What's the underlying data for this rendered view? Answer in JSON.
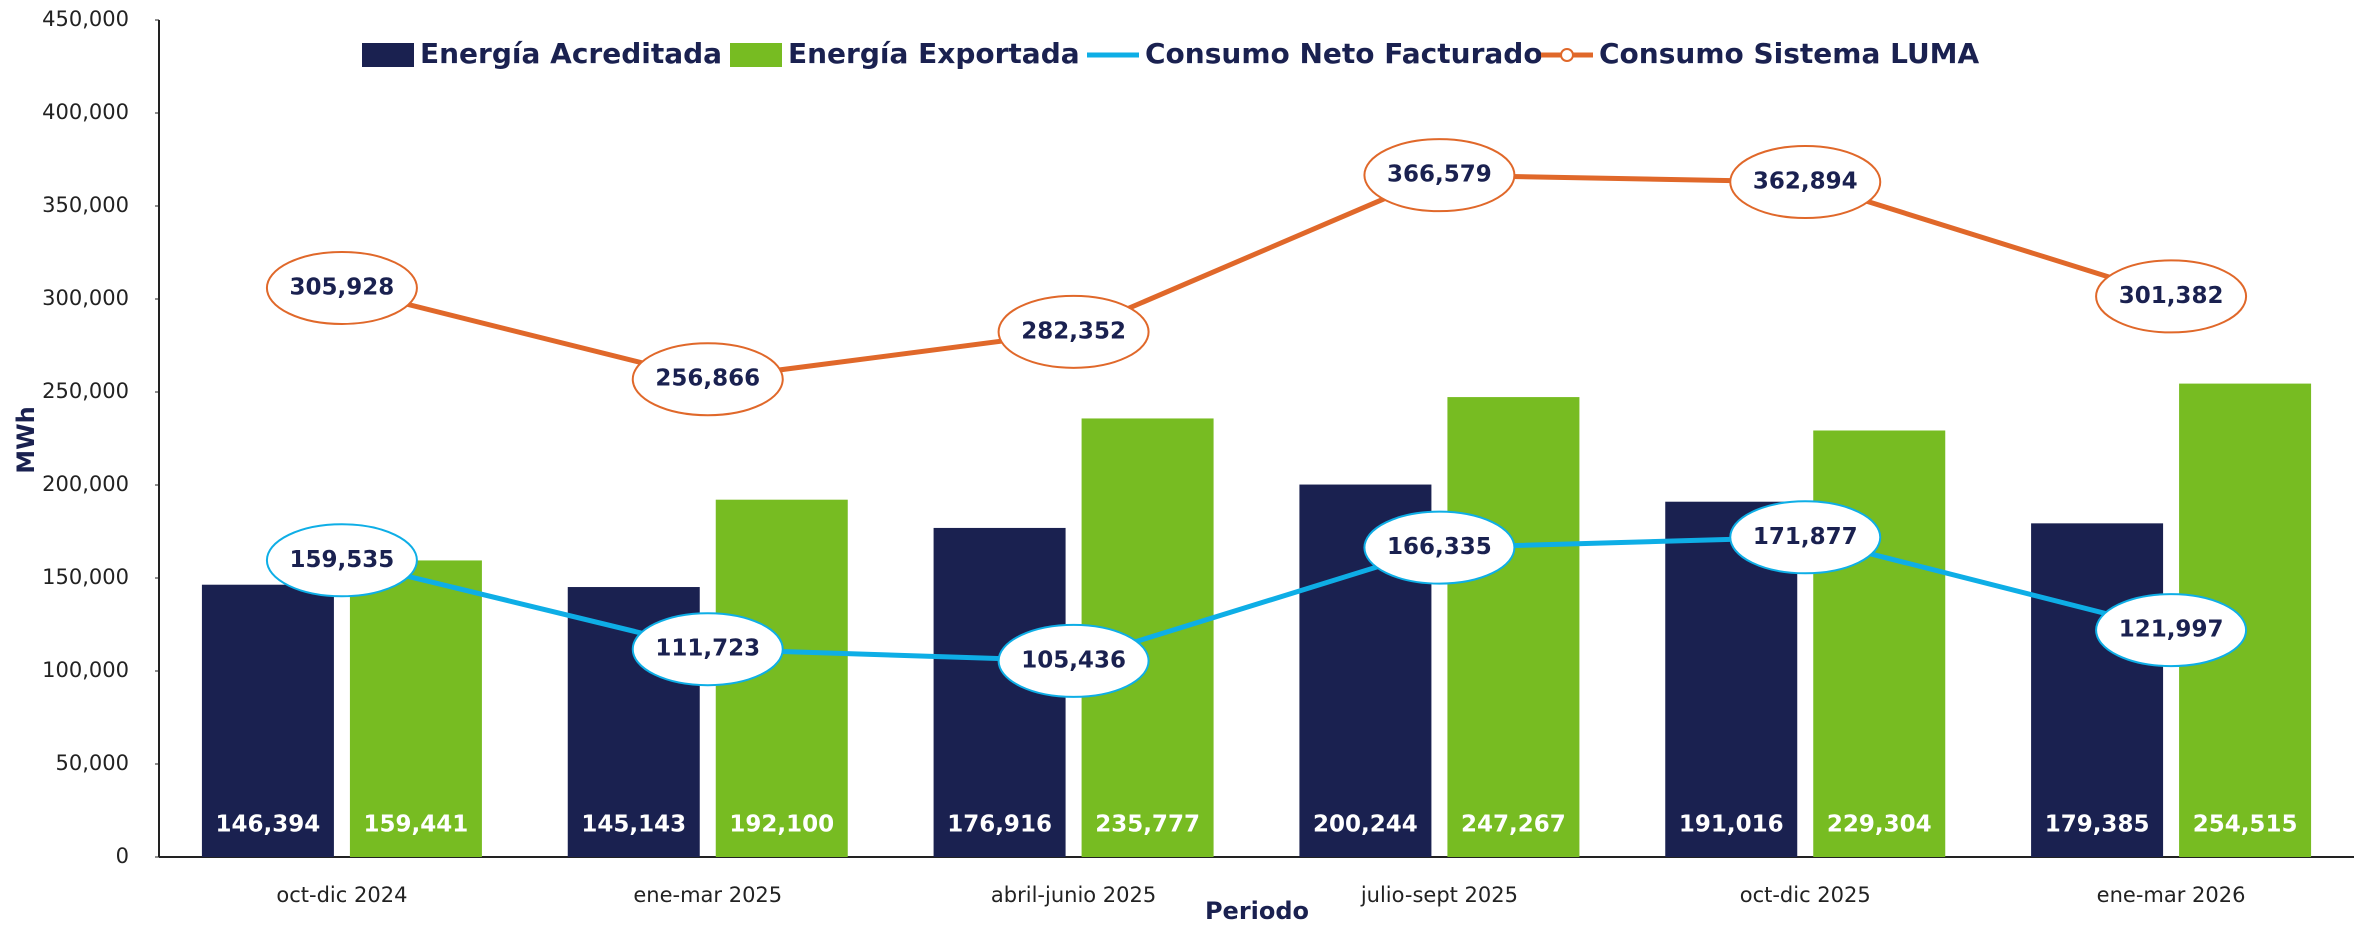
{
  "chart_data": {
    "type": "bar",
    "x_label": "Periodo",
    "y_label": "MWh",
    "categories": [
      "oct-dic 2024",
      "ene-mar 2025",
      "abril-junio 2025",
      "julio-sept 2025",
      "oct-dic 2025",
      "ene-mar 2026"
    ],
    "series": [
      {
        "name": "Energía Acreditada",
        "type": "bar",
        "color": "#1a2150",
        "values": [
          146394,
          145143,
          176916,
          200244,
          191016,
          179385
        ],
        "value_labels": [
          "146,394",
          "145,143",
          "176,916",
          "200,244",
          "191,016",
          "179,385"
        ]
      },
      {
        "name": "Energía Exportada",
        "type": "bar",
        "color": "#77bc22",
        "values": [
          159441,
          192100,
          235777,
          247267,
          229304,
          254515
        ],
        "value_labels": [
          "159,441",
          "192,100",
          "235,777",
          "247,267",
          "229,304",
          "254,515"
        ]
      },
      {
        "name": "Consumo Neto Facturado",
        "type": "line",
        "color": "#0eaee6",
        "values": [
          159535,
          111723,
          105436,
          166335,
          171877,
          121997
        ],
        "value_labels": [
          "159,535",
          "111,723",
          "105,436",
          "166,335",
          "171,877",
          "121,997"
        ]
      },
      {
        "name": "Consumo Sistema LUMA",
        "type": "line",
        "color": "#e0682a",
        "values": [
          305928,
          256866,
          282352,
          366579,
          362894,
          301382
        ],
        "value_labels": [
          "305,928",
          "256,866",
          "282,352",
          "366,579",
          "362,894",
          "301,382"
        ]
      }
    ],
    "ylim": [
      0,
      450000
    ],
    "yticks": [
      0,
      {
        "value": 50000,
        "label": "50,000"
      },
      {
        "value": 100000,
        "label": "100,000"
      },
      {
        "value": 150000,
        "label": "150,000"
      },
      {
        "value": 200000,
        "label": "200,000"
      },
      {
        "value": 250000,
        "label": "250,000"
      },
      {
        "value": 300000,
        "label": "300,000"
      },
      {
        "value": 350000,
        "label": "350,000"
      },
      {
        "value": 400000,
        "label": "400,000"
      },
      {
        "value": 450000,
        "label": "450,000"
      }
    ],
    "grid": false,
    "legend": "top"
  }
}
